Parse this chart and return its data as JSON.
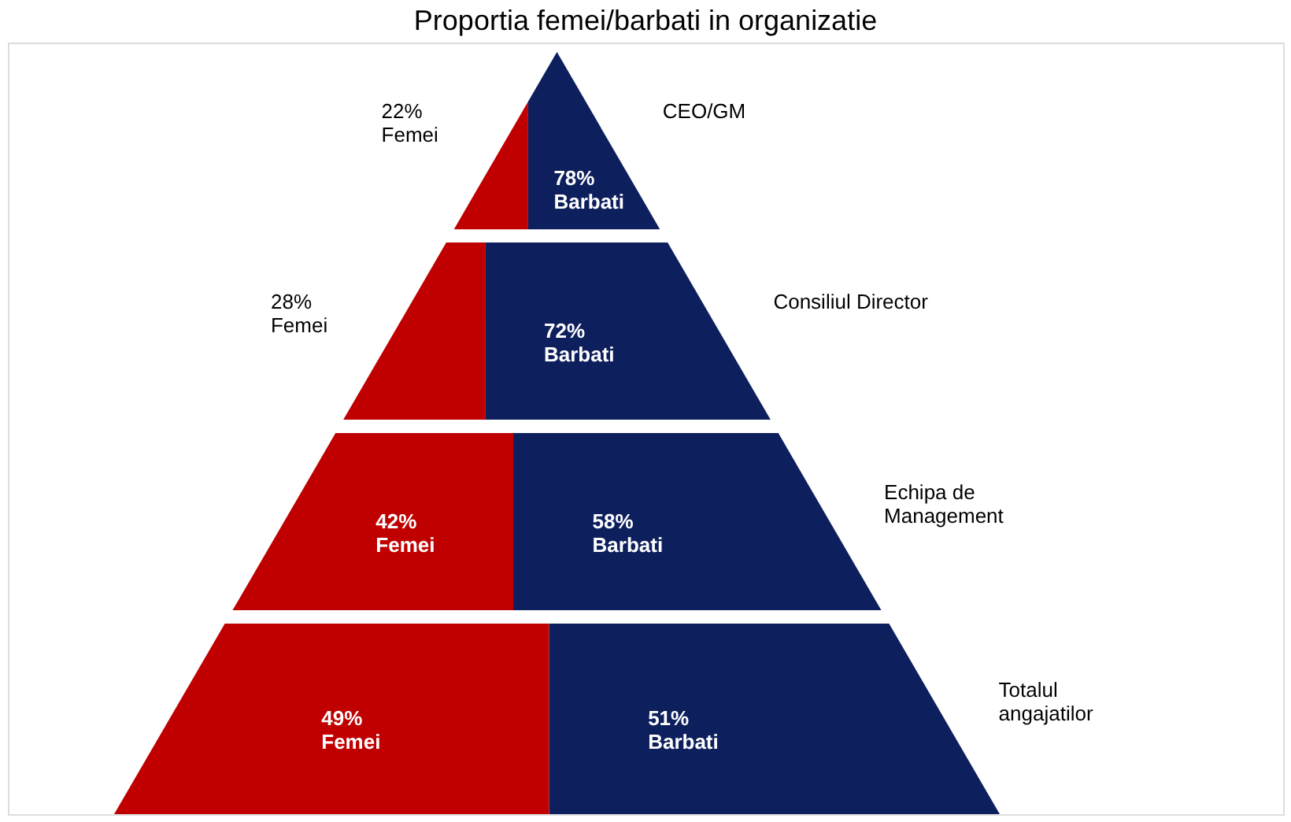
{
  "chart_data": {
    "type": "other",
    "title": "Proportia femei/barbati in organizatie",
    "categories": [
      "CEO/GM",
      "Consiliul Director",
      "Echipa de\nManagement",
      "Totalul\nangajatilor"
    ],
    "series": [
      {
        "name": "Femei",
        "color": "#c00000",
        "values": [
          22,
          28,
          42,
          49
        ],
        "value_labels": [
          "22%",
          "28%",
          "42%",
          "49%"
        ]
      },
      {
        "name": "Barbati",
        "color": "#0d1f5c",
        "values": [
          78,
          72,
          58,
          51
        ],
        "value_labels": [
          "78%",
          "72%",
          "58%",
          "51%"
        ]
      }
    ]
  }
}
